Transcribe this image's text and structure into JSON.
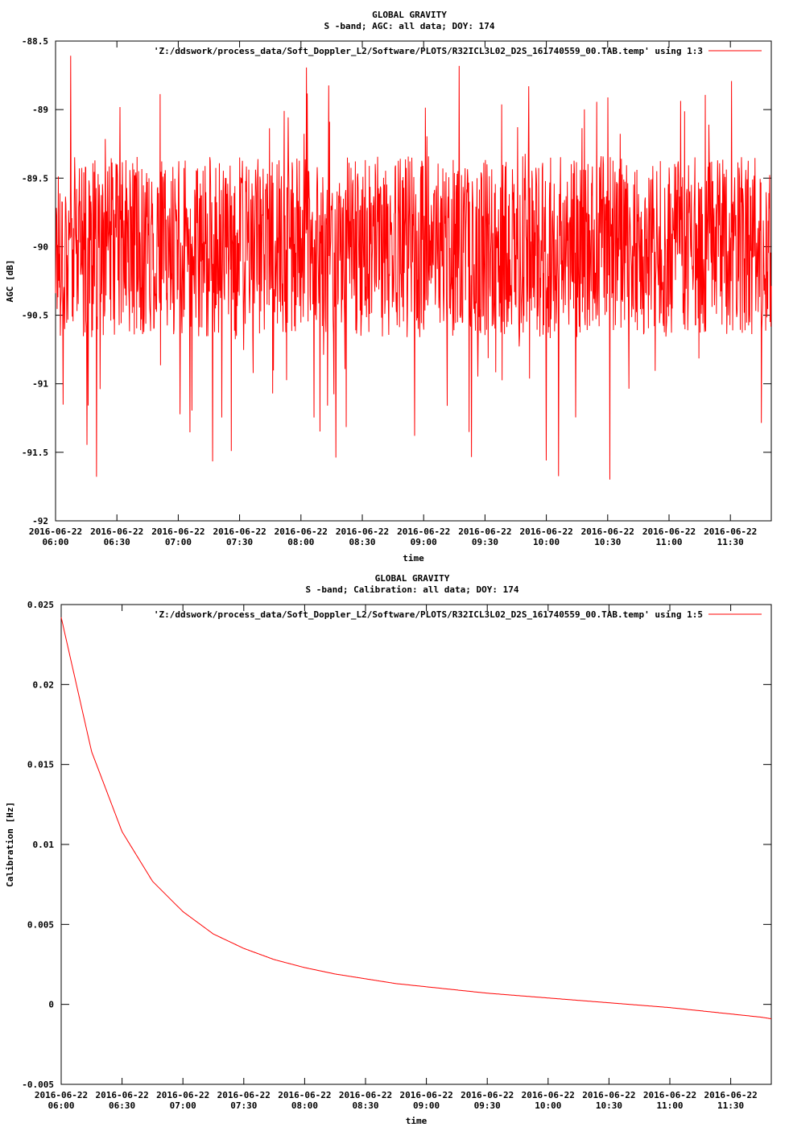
{
  "chart_data": [
    {
      "type": "line",
      "title": "GLOBAL GRAVITY",
      "subtitle": "S -band; AGC: all data; DOY: 174",
      "xlabel": "time",
      "ylabel": "AGC [dB]",
      "ylim": [
        -92,
        -88.5
      ],
      "yticks": [
        -92,
        -91.5,
        -91,
        -90.5,
        -90,
        -89.5,
        -89,
        -88.5
      ],
      "ytick_labels": [
        "-92",
        "-91.5",
        "-91",
        "-90.5",
        "-90",
        "-89.5",
        "-89",
        "-88.5"
      ],
      "xlim": [
        "06:00",
        "11:50"
      ],
      "xticks": [
        "06:00",
        "06:30",
        "07:00",
        "07:30",
        "08:00",
        "08:30",
        "09:00",
        "09:30",
        "10:00",
        "10:30",
        "11:00",
        "11:30"
      ],
      "xtick_date": "2016-06-22",
      "legend": "top-right",
      "grid": false,
      "series": [
        {
          "name": "'Z:/ddswork/process_data/Soft_Doppler_L2/Software/PLOTS/R32ICL3L02_D2S_161740559_00.TAB.temp' using 1:3",
          "color": "#ff0000",
          "x_start": "06:00",
          "x_end": "11:50",
          "y_mean": -90.0,
          "y_band": [
            -90.6,
            -89.4
          ],
          "y_min": -91.7,
          "y_max": -88.6,
          "note_noise": true
        }
      ]
    },
    {
      "type": "line",
      "title": "GLOBAL GRAVITY",
      "subtitle": "S -band; Calibration: all data; DOY: 174",
      "xlabel": "time",
      "ylabel": "Calibration [Hz]",
      "ylim": [
        -0.005,
        0.025
      ],
      "yticks": [
        -0.005,
        0,
        0.005,
        0.01,
        0.015,
        0.02,
        0.025
      ],
      "ytick_labels": [
        "-0.005",
        "0",
        "0.005",
        "0.01",
        "0.015",
        "0.02",
        "0.025"
      ],
      "xlim": [
        "06:00",
        "11:50"
      ],
      "xticks": [
        "06:00",
        "06:30",
        "07:00",
        "07:30",
        "08:00",
        "08:30",
        "09:00",
        "09:30",
        "10:00",
        "10:30",
        "11:00",
        "11:30"
      ],
      "xtick_date": "2016-06-22",
      "legend": "top-right",
      "grid": false,
      "series": [
        {
          "name": "'Z:/ddswork/process_data/Soft_Doppler_L2/Software/PLOTS/R32ICL3L02_D2S_161740559_00.TAB.temp' using 1:5",
          "color": "#ff0000",
          "x": [
            "06:00",
            "06:15",
            "06:30",
            "06:45",
            "07:00",
            "07:15",
            "07:30",
            "07:45",
            "08:00",
            "08:15",
            "08:30",
            "08:45",
            "09:00",
            "09:15",
            "09:30",
            "09:45",
            "10:00",
            "10:15",
            "10:30",
            "10:45",
            "11:00",
            "11:15",
            "11:30",
            "11:45",
            "11:50"
          ],
          "y": [
            0.0242,
            0.0158,
            0.0108,
            0.0077,
            0.0058,
            0.0044,
            0.0035,
            0.0028,
            0.0023,
            0.0019,
            0.0016,
            0.0013,
            0.0011,
            0.0009,
            0.0007,
            0.00055,
            0.0004,
            0.00025,
            0.0001,
            -5e-05,
            -0.0002,
            -0.0004,
            -0.0006,
            -0.0008,
            -0.0009
          ]
        }
      ]
    }
  ]
}
